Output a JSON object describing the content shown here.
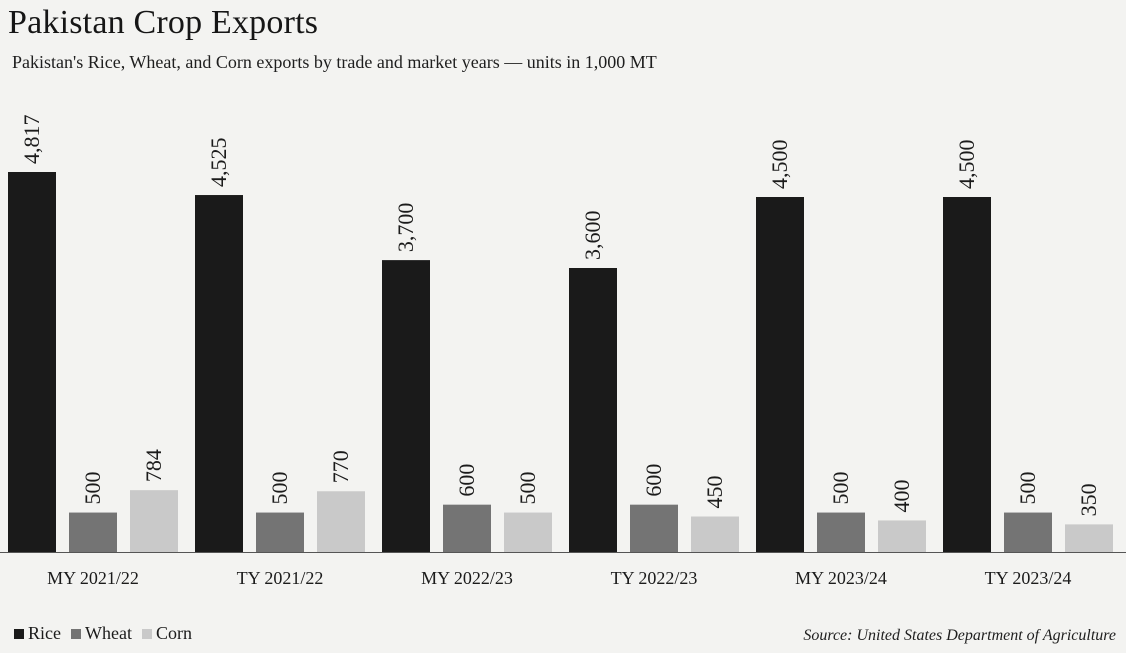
{
  "header": {
    "title": "Pakistan Crop Exports",
    "subtitle": "Pakistan's Rice, Wheat, and Corn exports by trade and market years — units in 1,000 MT"
  },
  "source": "Source: United States Department of Agriculture",
  "colors": {
    "Rice": "#1a1a1a",
    "Wheat": "#747474",
    "Corn": "#c9c9c9"
  },
  "chart_data": {
    "type": "bar",
    "title": "Pakistan Crop Exports",
    "subtitle": "Pakistan's Rice, Wheat, and Corn exports by trade and market years — units in 1,000 MT",
    "xlabel": "",
    "ylabel": "",
    "ylim": [
      0,
      4817
    ],
    "grid": false,
    "legend": "bottom-left",
    "categories": [
      "MY 2021/22",
      "TY 2021/22",
      "MY 2022/23",
      "TY 2022/23",
      "MY 2023/24",
      "TY 2023/24"
    ],
    "series": [
      {
        "name": "Rice",
        "values": [
          4817,
          4525,
          3700,
          3600,
          4500,
          4500
        ],
        "labels": [
          "4,817",
          "4,525",
          "3,700",
          "3,600",
          "4,500",
          "4,500"
        ]
      },
      {
        "name": "Wheat",
        "values": [
          500,
          500,
          600,
          600,
          500,
          500
        ],
        "labels": [
          "500",
          "500",
          "600",
          "600",
          "500",
          "500"
        ]
      },
      {
        "name": "Corn",
        "values": [
          784,
          770,
          500,
          450,
          400,
          350
        ],
        "labels": [
          "784",
          "770",
          "500",
          "450",
          "400",
          "350"
        ]
      }
    ]
  }
}
